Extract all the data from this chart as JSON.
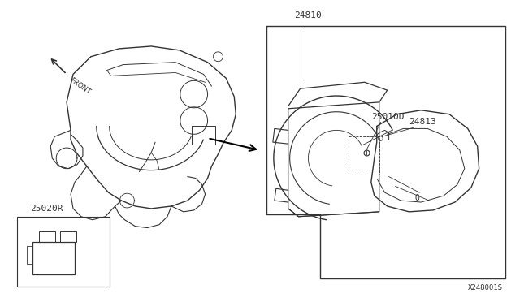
{
  "bg_color": "#ffffff",
  "line_color": "#333333",
  "diagram_id": "X248001S",
  "label_24810": "24810",
  "label_25010D": "25010D",
  "label_24813": "24813",
  "label_25020R": "25020R"
}
